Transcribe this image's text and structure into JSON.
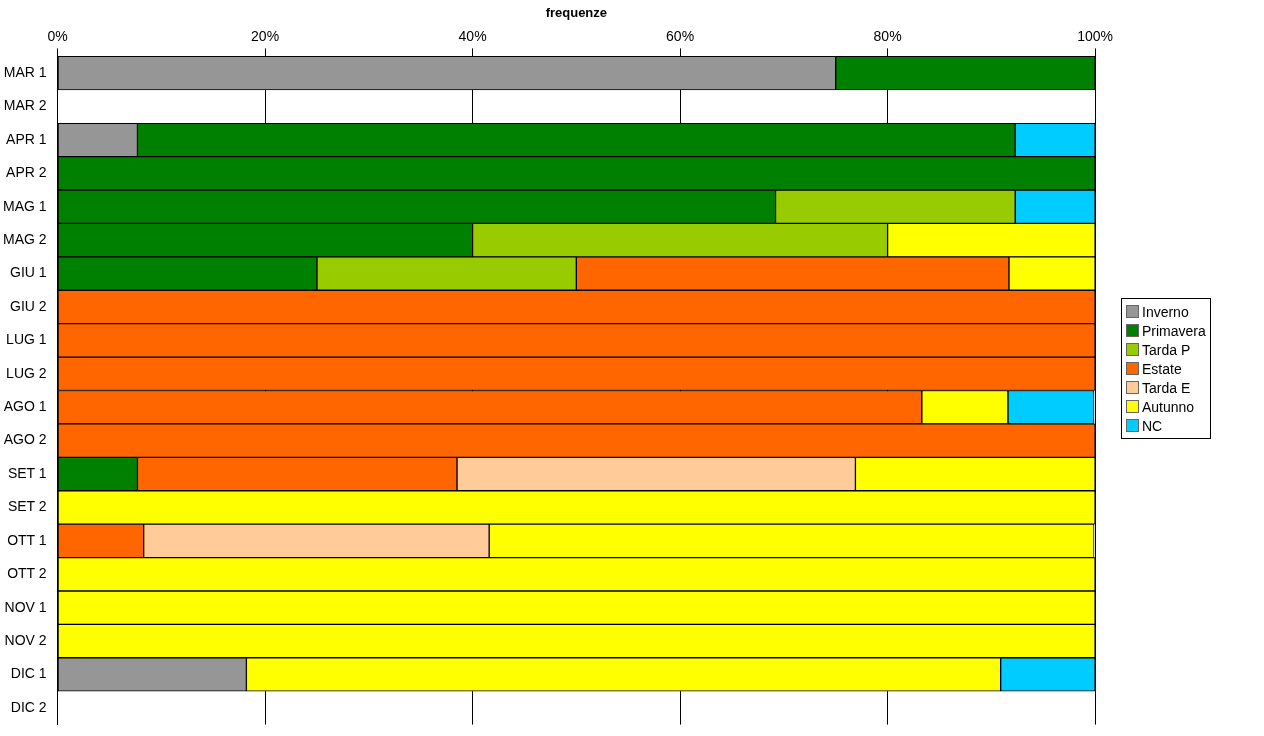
{
  "chart_data": {
    "type": "bar",
    "orientation": "horizontal",
    "stacked": true,
    "xlabel": "frequenze",
    "categories": [
      "MAR 1",
      "MAR 2",
      "APR 1",
      "APR 2",
      "MAG 1",
      "MAG 2",
      "GIU 1",
      "GIU 2",
      "LUG 1",
      "LUG 2",
      "AGO 1",
      "AGO 2",
      "SET 1",
      "SET 2",
      "OTT 1",
      "OTT 2",
      "NOV 1",
      "NOV 2",
      "DIC 1",
      "DIC 2"
    ],
    "series": [
      {
        "name": "Inverno",
        "color": "#969696",
        "values": [
          75,
          null,
          7.7,
          null,
          null,
          null,
          null,
          null,
          null,
          null,
          null,
          null,
          null,
          null,
          null,
          null,
          null,
          null,
          18.2,
          null
        ]
      },
      {
        "name": "Primavera",
        "color": "#008000",
        "values": [
          25,
          null,
          84.6,
          100,
          69.2,
          40,
          25,
          null,
          null,
          null,
          null,
          null,
          7.7,
          null,
          null,
          null,
          null,
          null,
          null,
          null
        ]
      },
      {
        "name": "Tarda P",
        "color": "#99cc00",
        "values": [
          null,
          null,
          null,
          null,
          23.1,
          40,
          25,
          null,
          null,
          null,
          null,
          null,
          null,
          null,
          null,
          null,
          null,
          null,
          null,
          null
        ]
      },
      {
        "name": "Estate",
        "color": "#ff6600",
        "values": [
          null,
          null,
          null,
          null,
          null,
          null,
          41.7,
          100,
          100,
          100,
          83.3,
          100,
          30.8,
          null,
          8.3,
          null,
          null,
          null,
          null,
          null
        ]
      },
      {
        "name": "Tarda E",
        "color": "#ffcc99",
        "values": [
          null,
          null,
          null,
          null,
          null,
          null,
          null,
          null,
          null,
          null,
          null,
          null,
          38.4,
          null,
          33.3,
          null,
          null,
          null,
          null,
          null
        ]
      },
      {
        "name": "Autunno",
        "color": "#ffff00",
        "values": [
          null,
          null,
          null,
          null,
          null,
          20,
          8.3,
          null,
          null,
          null,
          8.3,
          null,
          23.1,
          100,
          58.3,
          100,
          100,
          100,
          72.7,
          null
        ]
      },
      {
        "name": "NC",
        "color": "#00ccff",
        "values": [
          null,
          null,
          7.7,
          null,
          7.7,
          null,
          null,
          null,
          null,
          null,
          8.3,
          null,
          null,
          null,
          null,
          null,
          null,
          null,
          9.1,
          null
        ]
      }
    ],
    "xlim": [
      0,
      100
    ],
    "xticks": [
      {
        "value": 0,
        "label": "0%"
      },
      {
        "value": 20,
        "label": "20%"
      },
      {
        "value": 40,
        "label": "40%"
      },
      {
        "value": 60,
        "label": "60%"
      },
      {
        "value": 80,
        "label": "80%"
      },
      {
        "value": 100,
        "label": "100%"
      }
    ],
    "grid": "x",
    "legend": "right"
  }
}
